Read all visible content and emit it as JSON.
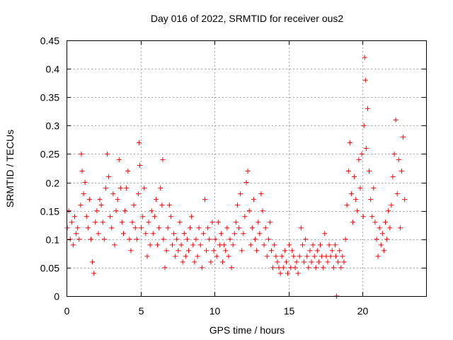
{
  "chart_data": {
    "type": "scatter",
    "title": "Day 016 of 2022, SRMTID for receiver ous2",
    "xlabel": "GPS time / hours",
    "ylabel": "SRMTID / TECUs",
    "xlim": [
      0,
      24.3
    ],
    "ylim": [
      0,
      0.45
    ],
    "xticks": [
      0,
      5,
      10,
      15,
      20
    ],
    "yticks": [
      0,
      0.05,
      0.1,
      0.15,
      0.2,
      0.25,
      0.3,
      0.35,
      0.4,
      0.45
    ],
    "xtick_labels": [
      "0",
      "5",
      "10",
      "15",
      "20"
    ],
    "ytick_labels": [
      "0",
      "0.05",
      "0.1",
      "0.15",
      "0.2",
      "0.25",
      "0.3",
      "0.35",
      "0.4",
      "0.45"
    ],
    "grid": true,
    "marker": "+",
    "color": "#ff0000",
    "series": [
      {
        "name": "SRMTID",
        "x": [
          0.05,
          0.15,
          0.25,
          0.35,
          0.45,
          0.55,
          0.65,
          0.75,
          0.85,
          0.95,
          1.0,
          1.05,
          1.15,
          1.25,
          1.35,
          1.45,
          1.55,
          1.65,
          1.75,
          1.85,
          1.95,
          2.05,
          2.15,
          2.25,
          2.35,
          2.45,
          2.55,
          2.65,
          2.75,
          2.85,
          2.95,
          3.05,
          3.15,
          3.25,
          3.35,
          3.45,
          3.55,
          3.65,
          3.75,
          3.85,
          3.95,
          4.05,
          4.15,
          4.25,
          4.35,
          4.45,
          4.55,
          4.65,
          4.75,
          4.85,
          4.9,
          4.95,
          5.05,
          5.15,
          5.25,
          5.35,
          5.45,
          5.55,
          5.65,
          5.75,
          5.85,
          5.95,
          6.05,
          6.15,
          6.25,
          6.35,
          6.45,
          6.5,
          6.55,
          6.65,
          6.75,
          6.85,
          6.95,
          7.05,
          7.15,
          7.25,
          7.35,
          7.45,
          7.55,
          7.65,
          7.75,
          7.85,
          7.95,
          8.05,
          8.15,
          8.25,
          8.35,
          8.45,
          8.55,
          8.65,
          8.75,
          8.85,
          8.95,
          9.05,
          9.15,
          9.25,
          9.35,
          9.45,
          9.55,
          9.65,
          9.75,
          9.85,
          9.95,
          10.05,
          10.15,
          10.25,
          10.35,
          10.45,
          10.55,
          10.65,
          10.75,
          10.85,
          10.95,
          11.05,
          11.15,
          11.25,
          11.35,
          11.45,
          11.55,
          11.65,
          11.75,
          11.85,
          11.95,
          12.05,
          12.15,
          12.25,
          12.35,
          12.45,
          12.55,
          12.65,
          12.75,
          12.85,
          12.95,
          13.05,
          13.15,
          13.25,
          13.35,
          13.45,
          13.55,
          13.65,
          13.75,
          13.85,
          13.95,
          14.05,
          14.15,
          14.25,
          14.35,
          14.45,
          14.55,
          14.65,
          14.75,
          14.85,
          14.95,
          15.05,
          15.15,
          15.25,
          15.35,
          15.45,
          15.55,
          15.65,
          15.75,
          15.85,
          15.95,
          16.05,
          16.15,
          16.25,
          16.35,
          16.45,
          16.55,
          16.65,
          16.75,
          16.85,
          16.95,
          17.05,
          17.15,
          17.25,
          17.35,
          17.45,
          17.55,
          17.65,
          17.75,
          17.85,
          17.95,
          18.05,
          18.15,
          18.2,
          18.25,
          18.35,
          18.45,
          18.55,
          18.65,
          18.75,
          18.85,
          18.95,
          19.05,
          19.15,
          19.25,
          19.35,
          19.45,
          19.55,
          19.65,
          19.75,
          19.85,
          19.95,
          20.05,
          20.1,
          20.15,
          20.2,
          20.25,
          20.35,
          20.45,
          20.55,
          20.65,
          20.75,
          20.85,
          20.95,
          21.05,
          21.15,
          21.25,
          21.35,
          21.45,
          21.55,
          21.65,
          21.75,
          21.85,
          21.95,
          22.05,
          22.15,
          22.25,
          22.35,
          22.45,
          22.55,
          22.65,
          22.75,
          22.85
        ],
        "y": [
          0.12,
          0.15,
          0.1,
          0.13,
          0.09,
          0.14,
          0.11,
          0.12,
          0.1,
          0.16,
          0.25,
          0.22,
          0.18,
          0.2,
          0.14,
          0.12,
          0.17,
          0.1,
          0.06,
          0.04,
          0.13,
          0.15,
          0.11,
          0.17,
          0.16,
          0.13,
          0.1,
          0.19,
          0.25,
          0.21,
          0.14,
          0.12,
          0.18,
          0.09,
          0.15,
          0.17,
          0.24,
          0.19,
          0.13,
          0.11,
          0.15,
          0.19,
          0.22,
          0.1,
          0.08,
          0.13,
          0.16,
          0.12,
          0.1,
          0.18,
          0.27,
          0.23,
          0.12,
          0.14,
          0.19,
          0.11,
          0.07,
          0.13,
          0.09,
          0.15,
          0.11,
          0.14,
          0.17,
          0.09,
          0.12,
          0.19,
          0.16,
          0.24,
          0.1,
          0.05,
          0.08,
          0.12,
          0.16,
          0.14,
          0.09,
          0.11,
          0.07,
          0.1,
          0.08,
          0.13,
          0.09,
          0.06,
          0.11,
          0.07,
          0.1,
          0.08,
          0.12,
          0.14,
          0.09,
          0.06,
          0.1,
          0.07,
          0.12,
          0.09,
          0.05,
          0.11,
          0.17,
          0.08,
          0.12,
          0.1,
          0.06,
          0.13,
          0.08,
          0.1,
          0.07,
          0.13,
          0.09,
          0.11,
          0.06,
          0.09,
          0.08,
          0.12,
          0.07,
          0.1,
          0.05,
          0.09,
          0.11,
          0.13,
          0.16,
          0.12,
          0.18,
          0.08,
          0.11,
          0.14,
          0.2,
          0.22,
          0.15,
          0.09,
          0.12,
          0.17,
          0.1,
          0.08,
          0.13,
          0.11,
          0.18,
          0.15,
          0.09,
          0.12,
          0.07,
          0.1,
          0.13,
          0.08,
          0.05,
          0.09,
          0.07,
          0.06,
          0.05,
          0.04,
          0.07,
          0.05,
          0.08,
          0.06,
          0.04,
          0.09,
          0.05,
          0.08,
          0.07,
          0.05,
          0.06,
          0.04,
          0.07,
          0.12,
          0.09,
          0.06,
          0.1,
          0.07,
          0.05,
          0.08,
          0.06,
          0.09,
          0.07,
          0.05,
          0.08,
          0.06,
          0.09,
          0.07,
          0.05,
          0.11,
          0.07,
          0.06,
          0.09,
          0.07,
          0.08,
          0.05,
          0.09,
          0.07,
          0.0,
          0.06,
          0.08,
          0.05,
          0.07,
          0.06,
          0.1,
          0.16,
          0.22,
          0.27,
          0.18,
          0.13,
          0.21,
          0.17,
          0.15,
          0.24,
          0.19,
          0.25,
          0.14,
          0.3,
          0.42,
          0.38,
          0.26,
          0.33,
          0.22,
          0.17,
          0.14,
          0.19,
          0.13,
          0.1,
          0.07,
          0.12,
          0.09,
          0.11,
          0.08,
          0.13,
          0.1,
          0.15,
          0.12,
          0.16,
          0.21,
          0.25,
          0.31,
          0.18,
          0.24,
          0.12,
          0.22,
          0.28,
          0.17
        ]
      }
    ]
  }
}
